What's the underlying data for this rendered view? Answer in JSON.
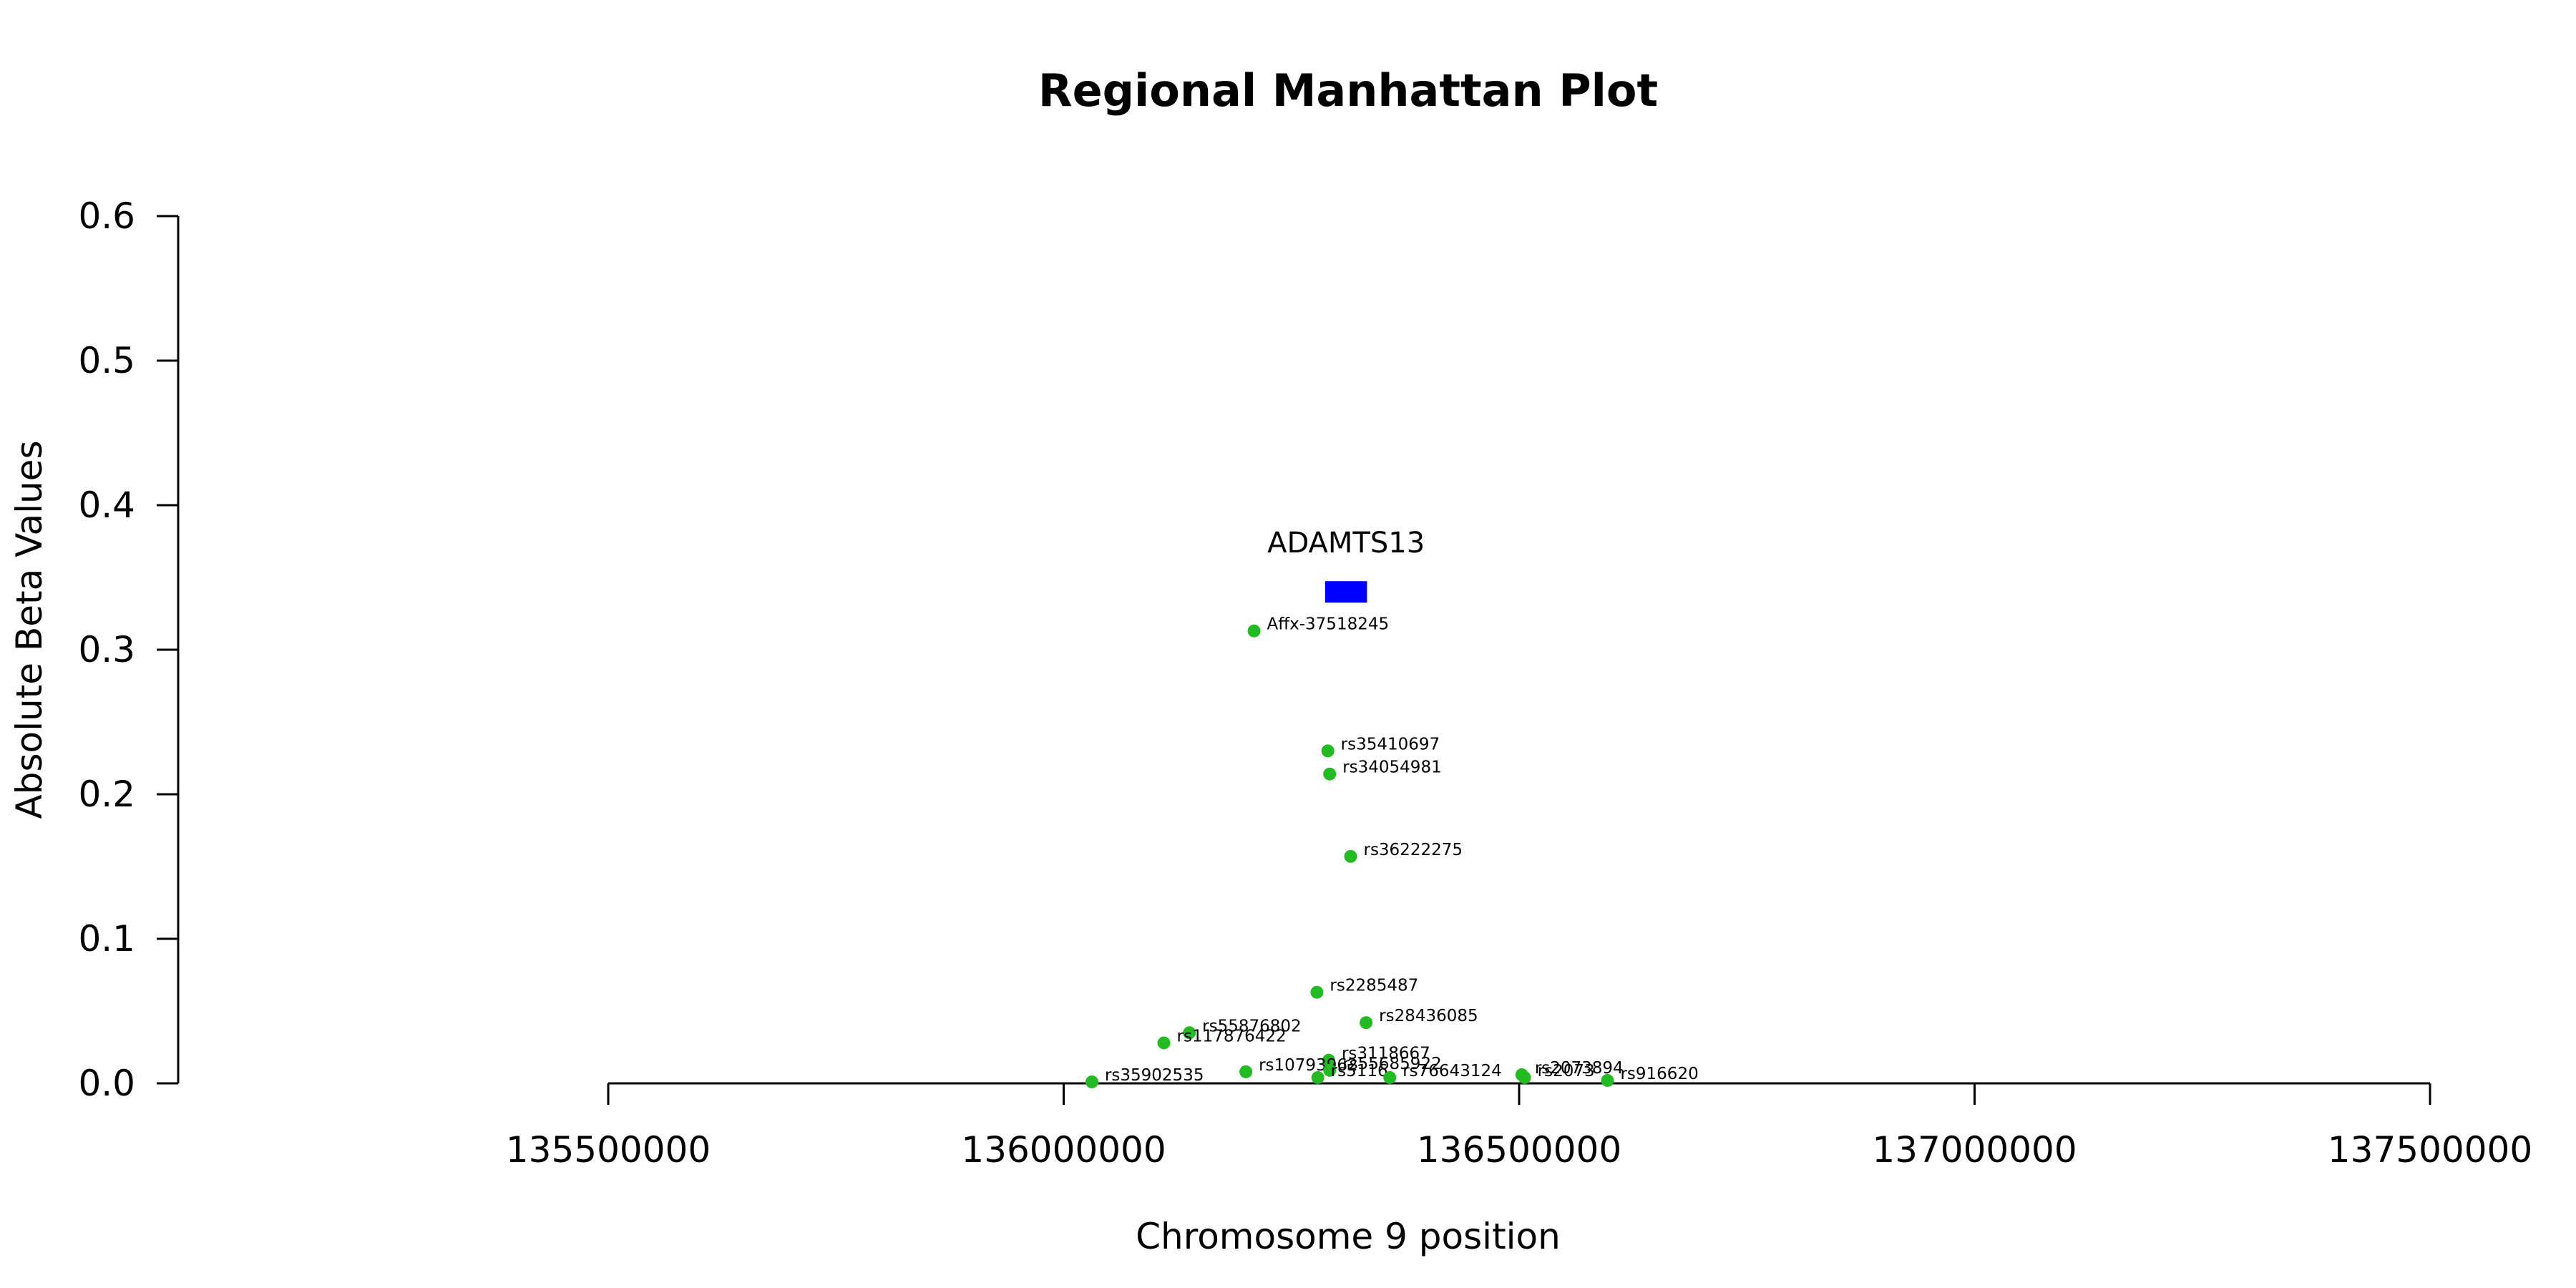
{
  "chart_data": {
    "type": "scatter",
    "title": "Regional Manhattan Plot",
    "xlabel": "Chromosome 9 position",
    "ylabel": "Absolute Beta Values",
    "xlim": [
      135500000,
      137500000
    ],
    "ylim": [
      0,
      0.6
    ],
    "x_ticks": [
      135500000,
      136000000,
      136500000,
      137000000,
      137500000
    ],
    "y_ticks": [
      0.0,
      0.1,
      0.2,
      0.3,
      0.4,
      0.5,
      0.6
    ],
    "point_color": "#22bb22",
    "gene_color": "#0000ff",
    "gene": {
      "name": "ADAMTS13",
      "start": 136287000,
      "end": 136333000,
      "y": 0.34
    },
    "points": [
      {
        "x": 136209000,
        "y": 0.313,
        "label": "Affx-37518245"
      },
      {
        "x": 136290000,
        "y": 0.23,
        "label": "rs35410697"
      },
      {
        "x": 136292000,
        "y": 0.214,
        "label": "rs34054981"
      },
      {
        "x": 136315000,
        "y": 0.157,
        "label": "rs36222275"
      },
      {
        "x": 136278000,
        "y": 0.063,
        "label": "rs2285487"
      },
      {
        "x": 136332000,
        "y": 0.042,
        "label": "rs28436085"
      },
      {
        "x": 136138000,
        "y": 0.035,
        "label": "rs55876802"
      },
      {
        "x": 136110000,
        "y": 0.028,
        "label": "rs117876422"
      },
      {
        "x": 136291000,
        "y": 0.016,
        "label": "rs3118667"
      },
      {
        "x": 136200000,
        "y": 0.008,
        "label": "rs10793962"
      },
      {
        "x": 136292000,
        "y": 0.009,
        "label": "rs55685922"
      },
      {
        "x": 136279000,
        "y": 0.004,
        "label": "rs5116"
      },
      {
        "x": 136358000,
        "y": 0.004,
        "label": "rs76643124"
      },
      {
        "x": 136503000,
        "y": 0.006,
        "label": "rs2073894"
      },
      {
        "x": 136506000,
        "y": 0.004,
        "label": "rs2073"
      },
      {
        "x": 136031000,
        "y": 0.001,
        "label": "rs35902535"
      },
      {
        "x": 136597000,
        "y": 0.002,
        "label": "rs916620"
      }
    ]
  }
}
